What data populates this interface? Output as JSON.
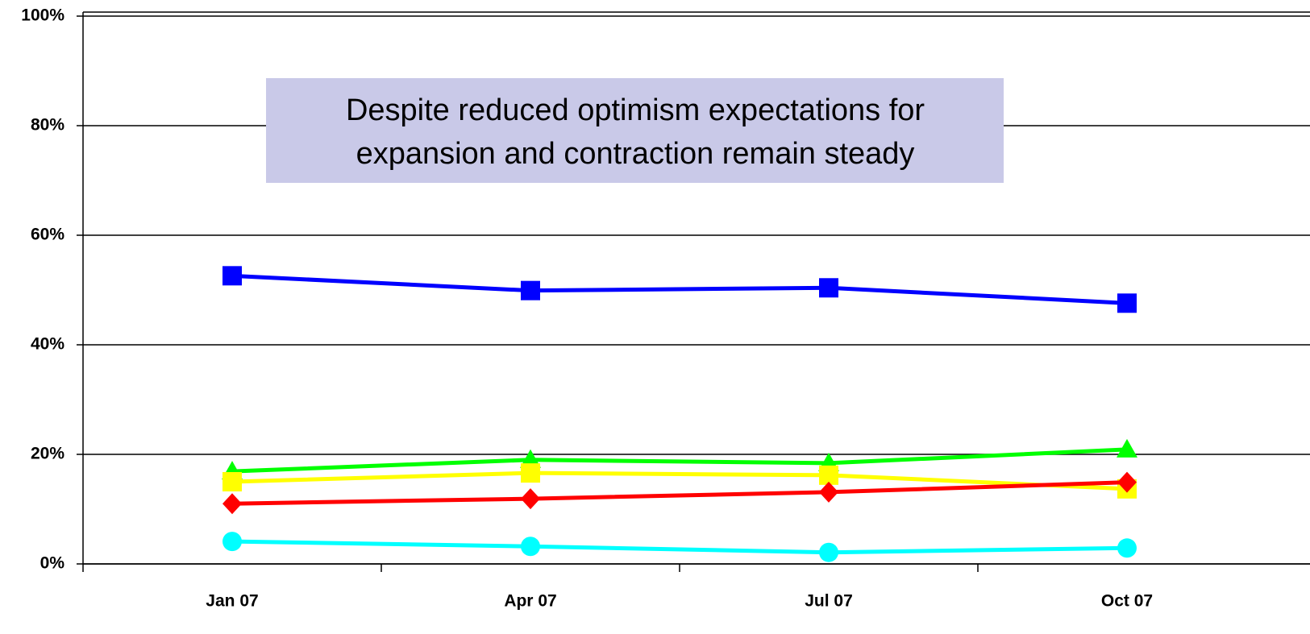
{
  "chart_data": {
    "type": "line",
    "annotation": [
      "Despite reduced optimism expectations for",
      "expansion and contraction remain steady"
    ],
    "categories": [
      "Jan 07",
      "Apr 07",
      "Jul 07",
      "Oct 07"
    ],
    "series": [
      {
        "color": "#0000ff",
        "marker": "square",
        "values": [
          52.6,
          49.9,
          50.4,
          47.6
        ]
      },
      {
        "color": "#00ff00",
        "marker": "triangle",
        "values": [
          16.9,
          19.0,
          18.4,
          20.9
        ]
      },
      {
        "color": "#ffff00",
        "marker": "square",
        "values": [
          15.0,
          16.6,
          16.2,
          13.7
        ]
      },
      {
        "color": "#ff0000",
        "marker": "diamond",
        "values": [
          11.0,
          11.9,
          13.1,
          14.9
        ]
      },
      {
        "color": "#00ffff",
        "marker": "circle",
        "values": [
          4.1,
          3.2,
          2.1,
          2.9
        ]
      }
    ],
    "ylim": [
      0,
      100
    ],
    "yticks": [
      {
        "value": 0,
        "label": "0%"
      },
      {
        "value": 20,
        "label": "20%"
      },
      {
        "value": 40,
        "label": "40%"
      },
      {
        "value": 60,
        "label": "60%"
      },
      {
        "value": 80,
        "label": "80%"
      },
      {
        "value": 100,
        "label": "100%"
      }
    ],
    "grid": true
  }
}
